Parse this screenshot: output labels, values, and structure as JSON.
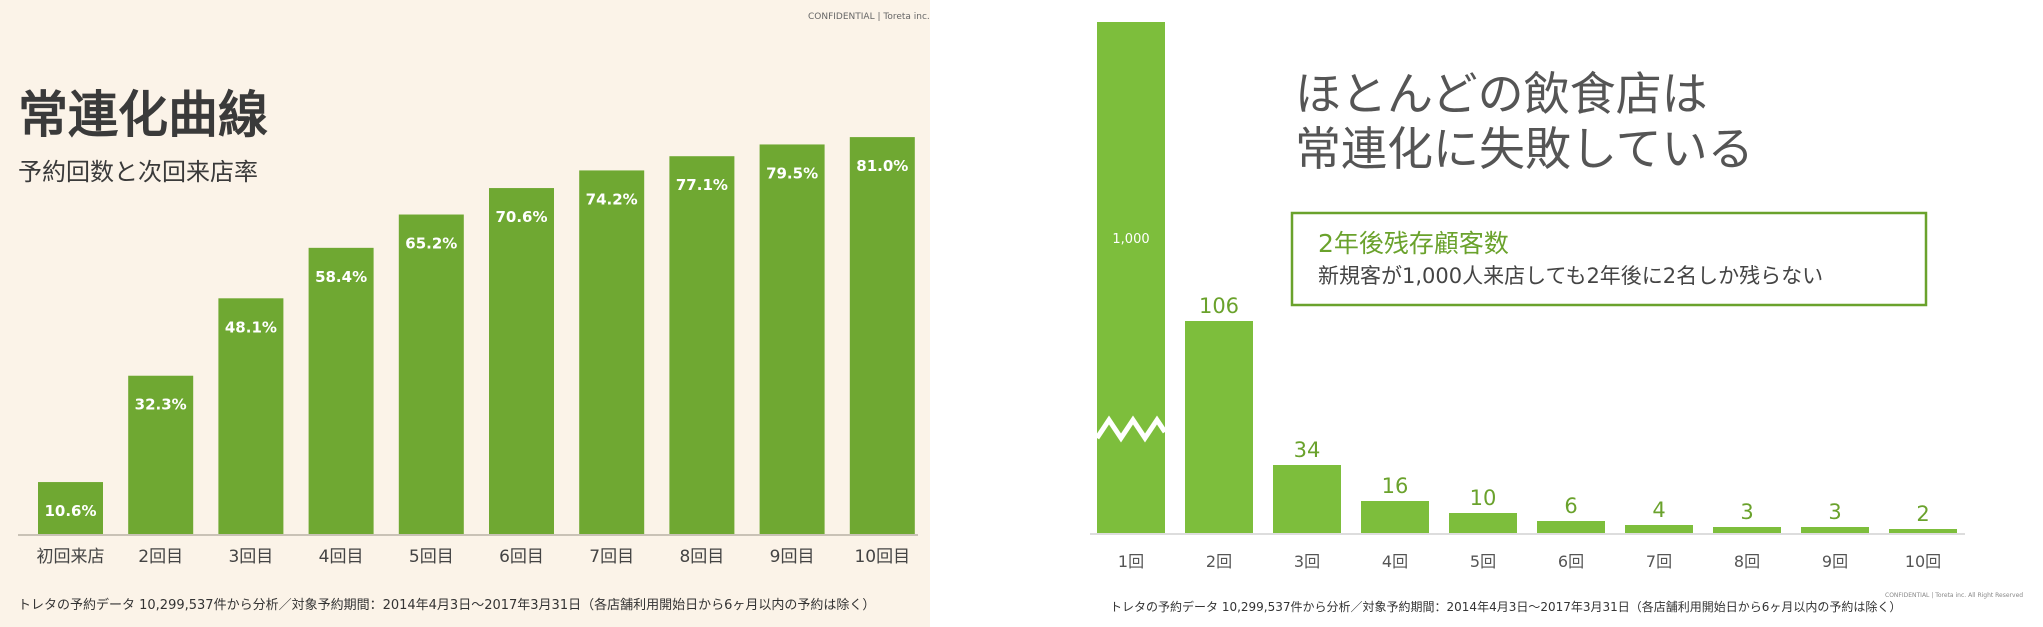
{
  "left": {
    "confidential": "CONFIDENTIAL | Toreta inc.",
    "title": "常連化曲線",
    "subtitle": "予約回数と次回来店率",
    "footnote": "トレタの予約データ 10,299,537件から分析／対象予約期間：2014年4月3日〜2017年3月31日（各店舗利用開始日から6ヶ月以内の予約は除く）"
  },
  "right": {
    "headline_line1": "ほとんどの飲食店は",
    "headline_line2": "常連化に失敗している",
    "callout_title": "2年後残存顧客数",
    "callout_text": "新規客が1,000人来店しても2年後に2名しか残らない",
    "footnote": "トレタの予約データ 10,299,537件から分析／対象予約期間：2014年4月3日〜2017年3月31日（各店舗利用開始日から6ヶ月以内の予約は除く）",
    "confidential": "CONFIDENTIAL | Toreta inc. All Right Reserved"
  },
  "colors": {
    "left_bar": "#6fa832",
    "right_bar": "#7dbe3c",
    "right_value_label": "#6aa22c",
    "left_background": "#fbf3e8"
  },
  "chart_data": [
    {
      "type": "bar",
      "title": "常連化曲線",
      "subtitle": "予約回数と次回来店率",
      "categories": [
        "初回来店",
        "2回目",
        "3回目",
        "4回目",
        "5回目",
        "6回目",
        "7回目",
        "8回目",
        "9回目",
        "10回目"
      ],
      "values": [
        10.6,
        32.3,
        48.1,
        58.4,
        65.2,
        70.6,
        74.2,
        77.1,
        79.5,
        81.0
      ],
      "labels": [
        "10.6%",
        "32.3%",
        "48.1%",
        "58.4%",
        "65.2%",
        "70.6%",
        "74.2%",
        "77.1%",
        "79.5%",
        "81.0%"
      ],
      "unit": "%",
      "ylim": [
        0,
        100
      ],
      "grid": false
    },
    {
      "type": "bar",
      "title": "2年後残存顧客数",
      "categories": [
        "1回",
        "2回",
        "3回",
        "4回",
        "5回",
        "6回",
        "7回",
        "8回",
        "9回",
        "10回"
      ],
      "values": [
        1000,
        106,
        34,
        16,
        10,
        6,
        4,
        3,
        3,
        2
      ],
      "labels": [
        "1,000",
        "106",
        "34",
        "16",
        "10",
        "6",
        "4",
        "3",
        "3",
        "2"
      ],
      "ylim": [
        0,
        140
      ],
      "axis_break": true,
      "grid": false
    }
  ]
}
